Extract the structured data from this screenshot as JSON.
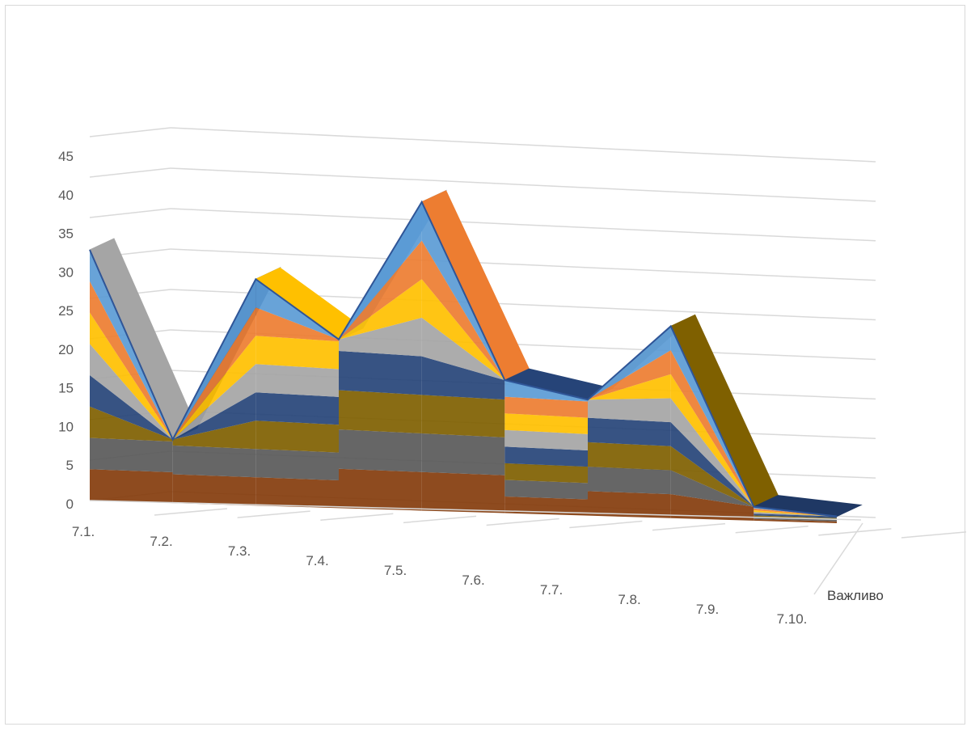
{
  "chart_data": {
    "type": "surface",
    "title": "",
    "xlabel": "",
    "ylabel": "",
    "zlim": [
      0,
      45
    ],
    "z_ticks": [
      0,
      5,
      10,
      15,
      20,
      25,
      30,
      35,
      40,
      45
    ],
    "categories": [
      "7.1.",
      "7.2.",
      "7.3.",
      "7.4.",
      "7.5.",
      "7.6.",
      "7.7.",
      "7.8.",
      "7.9.",
      "7.10."
    ],
    "series": [
      {
        "name": "Важливо",
        "values": [
          31,
          8,
          29,
          22,
          41,
          18,
          16,
          27,
          2,
          1
        ]
      }
    ],
    "band_colors": [
      "#1f3864",
      "#843c0c",
      "#595959",
      "#7f6000",
      "#264478",
      "#a5a5a5",
      "#ffc000",
      "#ed7d31",
      "#5b9bd5",
      "#9dc3e6",
      "#2e5597",
      "#1b2f52"
    ],
    "grid": true,
    "legend": "none"
  }
}
